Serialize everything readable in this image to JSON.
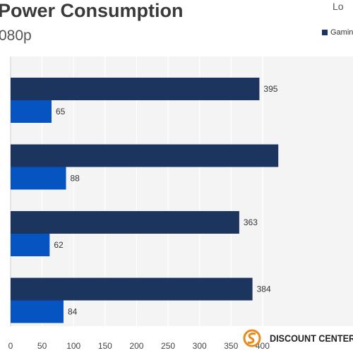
{
  "page": {
    "title": "Power Consumption",
    "subtitle": "080p",
    "corner_text": "Lo",
    "watermark_text": "DISCOUNT CENTER"
  },
  "colors": {
    "series_dark": "#1c355e",
    "series_light": "#0653c2",
    "plot_background": "#f4f4f4",
    "gridline": "#ffffff",
    "watermark_accent": "#e98a1f"
  },
  "chart_data": {
    "type": "bar",
    "orientation": "horizontal",
    "title": "Power Consumption",
    "subtitle": "080p",
    "categories": [
      "",
      "",
      "",
      ""
    ],
    "series": [
      {
        "name": "Gamin",
        "values": [
          395,
          425,
          363,
          384
        ]
      },
      {
        "name": "",
        "values": [
          65,
          88,
          62,
          84
        ]
      }
    ],
    "value_labels": [
      [
        "395",
        "",
        "363",
        "384"
      ],
      [
        "65",
        "88",
        "62",
        "84"
      ]
    ],
    "xlim": [
      0,
      425
    ],
    "xticks": [
      0,
      50,
      100,
      150,
      200,
      250,
      300,
      350,
      400
    ],
    "legend_position": "top-right",
    "grid": true
  }
}
